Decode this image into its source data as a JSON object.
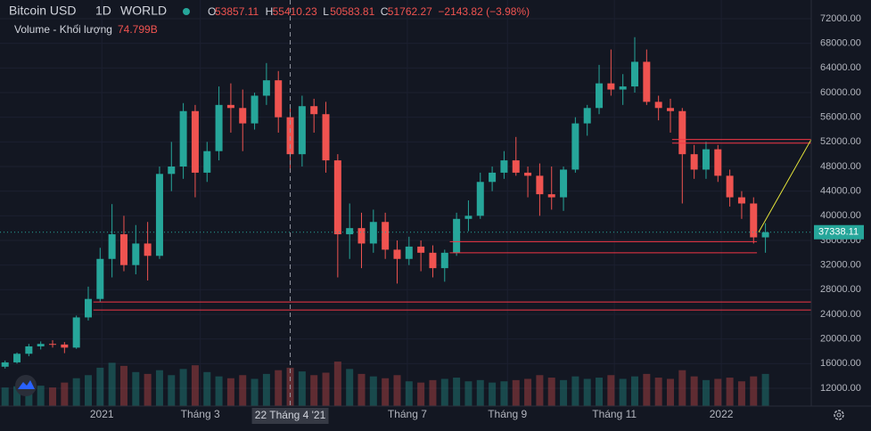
{
  "chart_data": {
    "type": "candlestick",
    "header": {
      "symbol": "Bitcoin USD",
      "interval": "1D",
      "exchange": "WORLD",
      "ohlc": [
        {
          "letter": "O",
          "value": "53857.11"
        },
        {
          "letter": "H",
          "value": "55410.23"
        },
        {
          "letter": "L",
          "value": "50583.81"
        },
        {
          "letter": "C",
          "value": "51762.27"
        }
      ],
      "change": "−2143.82 (−3.98%)",
      "volume_label": "Volume - Khối lượng",
      "volume_value": "74.799B"
    },
    "up_color": "#26a69a",
    "down_color": "#ef5350",
    "x": [
      3,
      10,
      17,
      24,
      31,
      38,
      45,
      52,
      59,
      66,
      73,
      80,
      87,
      94,
      101,
      108,
      115,
      122,
      129,
      136,
      143,
      150,
      157,
      164,
      171,
      178,
      185,
      192,
      199,
      206,
      213,
      220,
      227,
      234,
      241,
      248,
      255,
      262,
      269,
      276,
      283,
      290,
      297,
      304,
      311,
      318,
      325,
      332,
      339,
      346,
      353,
      360,
      367,
      374,
      381,
      388,
      395,
      402,
      409,
      416,
      423,
      430,
      437,
      444,
      451
    ],
    "open": [
      15500,
      16200,
      17600,
      18800,
      19200,
      19100,
      18600,
      23500,
      26500,
      33000,
      37000,
      32000,
      35500,
      33500,
      46800,
      48000,
      57000,
      47000,
      50500,
      58000,
      57500,
      55000,
      59500,
      62000,
      56000,
      50000,
      57800,
      56500,
      49000,
      37000,
      38000,
      35500,
      39000,
      34500,
      33000,
      35000,
      34000,
      31500,
      34000,
      39500,
      40000,
      45500,
      47000,
      49000,
      47000,
      46500,
      43500,
      43000,
      47500,
      55000,
      57500,
      61500,
      60500,
      61000,
      65000,
      58500,
      57500,
      57000,
      50000,
      47500,
      50800,
      46500,
      43000,
      42000,
      36500
    ],
    "high": [
      16500,
      17800,
      19200,
      19600,
      19800,
      19500,
      23800,
      28500,
      34800,
      41900,
      40000,
      38500,
      39000,
      48000,
      52000,
      58300,
      58000,
      52000,
      61000,
      61500,
      60500,
      60000,
      64800,
      63500,
      57500,
      59500,
      59000,
      58500,
      50000,
      42000,
      40500,
      41000,
      40500,
      36000,
      36600,
      36000,
      35200,
      34500,
      40500,
      42500,
      47000,
      48000,
      50500,
      52800,
      48000,
      48500,
      48000,
      48000,
      56000,
      58000,
      64500,
      67000,
      63000,
      69000,
      67000,
      59500,
      59000,
      57500,
      51500,
      52000,
      51500,
      47500,
      44000,
      43000,
      38800
    ],
    "low": [
      15200,
      16000,
      17200,
      18300,
      18600,
      17700,
      18400,
      23000,
      26000,
      30000,
      31000,
      30500,
      29500,
      33000,
      44000,
      46000,
      43000,
      45500,
      49000,
      53500,
      50500,
      54000,
      58000,
      53500,
      47000,
      48000,
      53500,
      47000,
      30000,
      33000,
      31500,
      34000,
      33000,
      29000,
      32000,
      31000,
      30000,
      29300,
      33500,
      37500,
      39500,
      44000,
      46000,
      46500,
      43000,
      40000,
      41000,
      40800,
      47000,
      53000,
      56500,
      59500,
      58000,
      60000,
      58000,
      55500,
      53500,
      42000,
      46000,
      46000,
      45500,
      41500,
      39500,
      35500,
      34000
    ],
    "close": [
      16200,
      17600,
      18800,
      19200,
      19100,
      18600,
      23500,
      26500,
      33000,
      37000,
      32000,
      35500,
      33500,
      46800,
      48000,
      57000,
      47000,
      50500,
      58000,
      57500,
      55000,
      59500,
      62000,
      56000,
      50000,
      57800,
      56500,
      49000,
      37000,
      38000,
      35500,
      39000,
      34500,
      33000,
      35000,
      34000,
      31500,
      34000,
      39500,
      40000,
      45500,
      47000,
      49000,
      47000,
      46500,
      43500,
      43000,
      47500,
      55000,
      57500,
      61500,
      60500,
      61000,
      65000,
      58500,
      57500,
      57000,
      50000,
      47500,
      50800,
      46500,
      43000,
      42000,
      36500,
      37338
    ],
    "volumes": [
      30,
      32,
      35,
      33,
      30,
      38,
      45,
      50,
      62,
      70,
      65,
      55,
      52,
      58,
      50,
      60,
      66,
      55,
      48,
      45,
      50,
      44,
      52,
      58,
      62,
      56,
      50,
      54,
      72,
      60,
      52,
      48,
      45,
      50,
      40,
      38,
      42,
      44,
      46,
      40,
      42,
      38,
      40,
      42,
      44,
      50,
      46,
      42,
      48,
      44,
      46,
      50,
      44,
      48,
      52,
      46,
      44,
      58,
      48,
      42,
      44,
      46,
      40,
      48,
      52
    ],
    "xlim": [
      0,
      478
    ],
    "xticks": [
      {
        "value": 60,
        "label": "2021"
      },
      {
        "value": 118,
        "label": "Tháng 3"
      },
      {
        "value": 240,
        "label": "Tháng 7"
      },
      {
        "value": 299,
        "label": "Tháng 9"
      },
      {
        "value": 362,
        "label": "Tháng 11"
      },
      {
        "value": 425,
        "label": "2022"
      }
    ],
    "crosshair": {
      "x": 171,
      "label": "22 Tháng 4 '21"
    },
    "ylim": [
      9108,
      75036
    ],
    "yticks": [
      {
        "value": 12000,
        "label": "12000.00"
      },
      {
        "value": 16000,
        "label": "16000.00"
      },
      {
        "value": 20000,
        "label": "20000.00"
      },
      {
        "value": 24000,
        "label": "24000.00"
      },
      {
        "value": 28000,
        "label": "28000.00"
      },
      {
        "value": 32000,
        "label": "32000.00"
      },
      {
        "value": 36000,
        "label": "36000.00"
      },
      {
        "value": 40000,
        "label": "40000.00"
      },
      {
        "value": 44000,
        "label": "44000.00"
      },
      {
        "value": 48000,
        "label": "48000.00"
      },
      {
        "value": 52000,
        "label": "52000.00"
      },
      {
        "value": 56000,
        "label": "56000.00"
      },
      {
        "value": 60000,
        "label": "60000.00"
      },
      {
        "value": 64000,
        "label": "64000.00"
      },
      {
        "value": 68000,
        "label": "68000.00"
      },
      {
        "value": 72000,
        "label": "72000.00"
      }
    ],
    "last_price": {
      "value": 37338.11,
      "label": "37338.11"
    },
    "hlines": [
      {
        "value": 52400,
        "x": [
          396,
          478
        ]
      },
      {
        "value": 51800,
        "x": [
          396,
          478
        ]
      },
      {
        "value": 35800,
        "x": [
          265,
          446
        ]
      },
      {
        "value": 34000,
        "x": [
          265,
          446
        ]
      },
      {
        "value": 26000,
        "x": [
          55,
          478
        ]
      },
      {
        "value": 24700,
        "x": [
          55,
          478
        ]
      }
    ],
    "hline_color": "#f23645",
    "trendline": {
      "x": [
        447,
        478
      ],
      "y": [
        37338,
        52400
      ],
      "color": "#e6e63a"
    }
  }
}
